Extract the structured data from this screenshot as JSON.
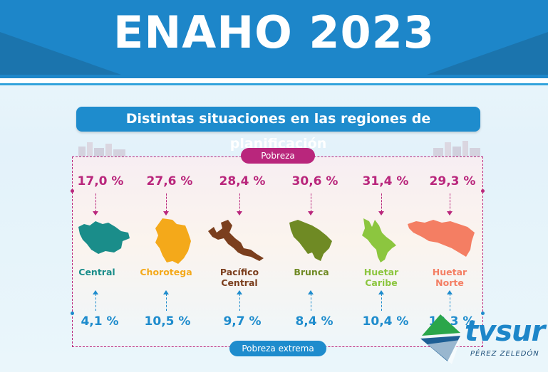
{
  "header": {
    "title": "ENAHO 2023"
  },
  "subtitle": "Distintas situaciones en las regiones de planificación",
  "labels": {
    "poverty": "Pobreza",
    "extreme_poverty": "Pobreza extrema"
  },
  "regions": [
    {
      "name_line1": "Central",
      "name_line2": "",
      "poverty": "17,0 %",
      "extreme": "4,1 %",
      "color": "#1a8d8a"
    },
    {
      "name_line1": "Chorotega",
      "name_line2": "",
      "poverty": "27,6 %",
      "extreme": "10,5 %",
      "color": "#f4a91a"
    },
    {
      "name_line1": "Pacífico",
      "name_line2": "Central",
      "poverty": "28,4 %",
      "extreme": "9,7 %",
      "color": "#7b3f1e"
    },
    {
      "name_line1": "Brunca",
      "name_line2": "",
      "poverty": "30,6 %",
      "extreme": "8,4 %",
      "color": "#6f8a24"
    },
    {
      "name_line1": "Huetar",
      "name_line2": "Caribe",
      "poverty": "31,4 %",
      "extreme": "10,4 %",
      "color": "#8cc63f"
    },
    {
      "name_line1": "Huetar",
      "name_line2": "Norte",
      "poverty": "29,3 %",
      "extreme": "10,3 %",
      "color": "#f47e63"
    }
  ],
  "logo": {
    "name": "tvsur",
    "subtitle": "PÉREZ ZELEDÓN"
  },
  "colors": {
    "header": "#1d86c9",
    "poverty": "#b9267c",
    "extreme": "#1e8ccd"
  }
}
